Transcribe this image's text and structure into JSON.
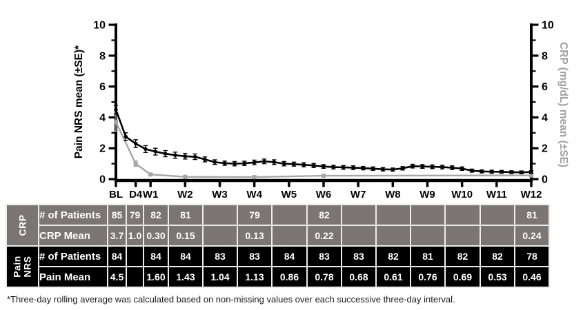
{
  "chart": {
    "left_axis": {
      "label": "Pain NRS mean (±SE)*",
      "ticks": [
        0,
        2,
        4,
        6,
        8,
        10
      ],
      "minor_ticks": [
        1,
        3,
        5,
        7,
        9
      ],
      "color": "#000000"
    },
    "right_axis": {
      "label": "CRP (mg/dL) mean (±SE)",
      "ticks": [
        0,
        2,
        4,
        6,
        8,
        10
      ],
      "minor_ticks": [
        1,
        3,
        5,
        7,
        9
      ],
      "label_color": "#a0a0a0"
    },
    "x_ticks": [
      {
        "label": "BL",
        "day": 0
      },
      {
        "label": "D4",
        "day": 4
      },
      {
        "label": "W1",
        "day": 7
      },
      {
        "label": "W2",
        "day": 14
      },
      {
        "label": "W3",
        "day": 21
      },
      {
        "label": "W4",
        "day": 28
      },
      {
        "label": "W5",
        "day": 35
      },
      {
        "label": "W6",
        "day": 42
      },
      {
        "label": "W7",
        "day": 49
      },
      {
        "label": "W8",
        "day": 56
      },
      {
        "label": "W9",
        "day": 63
      },
      {
        "label": "W10",
        "day": 70
      },
      {
        "label": "W11",
        "day": 77
      },
      {
        "label": "W12",
        "day": 84
      }
    ]
  },
  "chart_data": {
    "type": "line",
    "ylim": [
      0,
      10
    ],
    "x_unit": "study day (BL to W12)",
    "series": [
      {
        "id": "crp",
        "name": "CRP (mg/dL) mean",
        "color": "#a6a6a6",
        "marker": "square",
        "x_days": [
          0,
          4,
          7,
          14,
          28,
          42,
          84
        ],
        "values": [
          3.7,
          1.0,
          0.3,
          0.15,
          0.13,
          0.22,
          0.24
        ],
        "se": [
          0.6,
          0.18,
          0.06,
          0.04,
          0.04,
          0.05,
          0.06
        ]
      },
      {
        "id": "pain-nrs",
        "name": "Pain NRS mean (3-day rolling average)",
        "color": "#000000",
        "marker": "circle",
        "x_days": [
          0,
          2,
          4,
          6,
          8,
          10,
          12,
          14,
          16,
          18,
          20,
          22,
          24,
          26,
          28,
          30,
          32,
          34,
          36,
          38,
          40,
          42,
          44,
          46,
          48,
          50,
          52,
          54,
          56,
          58,
          60,
          62,
          64,
          66,
          68,
          70,
          72,
          74,
          76,
          78,
          80,
          82,
          84
        ],
        "values": [
          4.5,
          2.75,
          2.3,
          1.95,
          1.78,
          1.65,
          1.55,
          1.48,
          1.45,
          1.28,
          1.1,
          1.03,
          1.0,
          1.02,
          1.08,
          1.15,
          1.1,
          1.0,
          0.97,
          0.93,
          0.88,
          0.82,
          0.78,
          0.76,
          0.74,
          0.71,
          0.68,
          0.64,
          0.62,
          0.7,
          0.84,
          0.82,
          0.8,
          0.78,
          0.74,
          0.68,
          0.55,
          0.5,
          0.48,
          0.47,
          0.45,
          0.44,
          0.46
        ],
        "se": [
          0.28,
          0.25,
          0.25,
          0.22,
          0.22,
          0.2,
          0.2,
          0.18,
          0.18,
          0.16,
          0.15,
          0.14,
          0.14,
          0.14,
          0.15,
          0.15,
          0.15,
          0.14,
          0.13,
          0.13,
          0.13,
          0.12,
          0.12,
          0.12,
          0.12,
          0.11,
          0.11,
          0.11,
          0.1,
          0.11,
          0.12,
          0.12,
          0.12,
          0.12,
          0.12,
          0.11,
          0.1,
          0.1,
          0.1,
          0.09,
          0.09,
          0.09,
          0.09
        ]
      }
    ]
  },
  "table": {
    "columns": [
      "BL",
      "D4",
      "W1",
      "W2",
      "W3",
      "W4",
      "W5",
      "W6",
      "W7",
      "W8",
      "W9",
      "W10",
      "W11",
      "W12"
    ],
    "groups": [
      {
        "label": "CRP",
        "bg": "#7b7573",
        "rows": [
          {
            "label": "# of Patients",
            "values": [
              "85",
              "79",
              "82",
              "81",
              "",
              "79",
              "",
              "82",
              "",
              "",
              "",
              "",
              "",
              "81"
            ]
          },
          {
            "label": "CRP Mean",
            "values": [
              "3.7",
              "1.0",
              "0.30",
              "0.15",
              "",
              "0.13",
              "",
              "0.22",
              "",
              "",
              "",
              "",
              "",
              "0.24"
            ]
          }
        ]
      },
      {
        "label": "Pain NRS",
        "bg": "#000000",
        "rows": [
          {
            "label": "# of Patients",
            "values": [
              "84",
              "",
              "84",
              "84",
              "83",
              "83",
              "84",
              "83",
              "83",
              "82",
              "81",
              "82",
              "82",
              "78"
            ]
          },
          {
            "label": "Pain Mean",
            "values": [
              "4.5",
              "",
              "1.60",
              "1.43",
              "1.04",
              "1.13",
              "0.86",
              "0.78",
              "0.68",
              "0.61",
              "0.76",
              "0.69",
              "0.53",
              "0.46"
            ]
          }
        ]
      }
    ]
  },
  "footnote": "*Three-day rolling average was calculated based on non-missing values over each successive three-day interval."
}
